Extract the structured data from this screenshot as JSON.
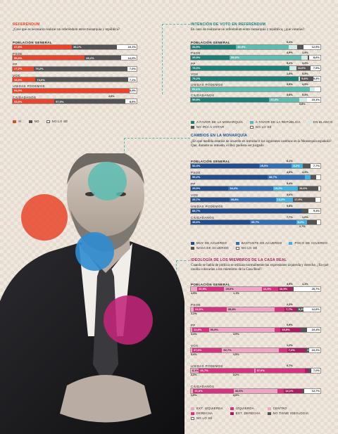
{
  "colors": {
    "red": "#e8452c",
    "dark": "#545454",
    "light": "#ffffff",
    "teal_dark": "#1b7f7a",
    "teal_mid": "#5bbcb2",
    "teal_light": "#cfe9e5",
    "blue_dark": "#1e4f91",
    "blue_mid": "#2f6fb8",
    "blue_light": "#3eb1e6",
    "magenta_dark": "#a81e62",
    "magenta_mid": "#d63383",
    "magenta_light": "#f1a5c6"
  },
  "chart_data": [
    {
      "id": "referendum",
      "type": "bar",
      "title": "REFERÉNDUM",
      "question": "¿Cree que es necesario realizar un referéndum entre monarquía y república?",
      "groups": [
        "POBLACIÓN GENERAL",
        "PSOE",
        "PP",
        "VOX",
        "UNIDAS PODEMOS",
        "CIUDADANOS"
      ],
      "series": [
        {
          "name": "SÍ",
          "values": [
            47.8,
            55.8,
            17.2,
            18.5,
            94.0,
            33.6
          ]
        },
        {
          "name": "NO",
          "values": [
            36.1,
            28.2,
            75.2,
            74.6,
            0.0,
            57.5
          ]
        },
        {
          "name": "NO LO SÉ",
          "values": [
            16.1,
            12.0,
            7.6,
            7.1,
            5.9,
            8.9
          ]
        }
      ],
      "labels": [
        [
          "47,8%",
          "36,1%",
          "16,1%"
        ],
        [
          "55,8%",
          "28,2%",
          "12,0%"
        ],
        [
          "17,2%",
          "75,2%",
          "7,6%"
        ],
        [
          "18,5%",
          "74,6%",
          "7,1%"
        ],
        [
          "94,0%",
          "",
          "5,9%"
        ],
        [
          "33,6%",
          "57,5%",
          "8,9%"
        ]
      ],
      "extra_labels": [
        "",
        "",
        "",
        "",
        "",
        "2,0%"
      ],
      "legend": [
        "SÍ",
        "NO",
        "NO LO SÉ"
      ]
    },
    {
      "id": "intencion",
      "type": "bar",
      "title": "INTENCIÓN DE VOTO EN REFERÉNDUM",
      "question": "En caso de realizarse un referéndum entre monarquía y república, ¿qué votarías?",
      "groups": [
        "POBLACIÓN GENERAL",
        "PSOE",
        "PP",
        "VOX",
        "UNIDAS PODEMOS",
        "CIUDADANOS"
      ],
      "series": [
        {
          "name": "A FAVOR DE LA MONARQUÍA",
          "values": [
            34.9,
            29.9,
            76.0,
            79.2,
            0.0,
            59.8
          ]
        },
        {
          "name": "A FAVOR DE LA REPÚBLICA",
          "values": [
            40.9,
            55.0,
            0.0,
            0.0,
            91.1,
            23.3
          ]
        },
        {
          "name": "EN BLANCO",
          "values": [
            6.4,
            4.9,
            5.2,
            1.4,
            3.5,
            5.8
          ]
        },
        {
          "name": "NO IRÍA A VOTAR",
          "values": [
            4.9,
            1.3,
            11.0,
            9.6,
            0.0,
            0.0
          ]
        },
        {
          "name": "NO LO SÉ",
          "values": [
            12.9,
            8.6,
            7.5,
            5.3,
            4.5,
            10.1
          ]
        }
      ],
      "labels": [
        [
          "34,9%",
          "40,9%",
          "",
          "",
          "12,9%"
        ],
        [
          "29,9%",
          "55,0%",
          "",
          "",
          "8,6%"
        ],
        [
          "76,0%",
          "",
          "",
          "11,0%",
          "7,5%"
        ],
        [
          "79,2%",
          "",
          "",
          "9,6%",
          "5,3%"
        ],
        [
          "",
          "91,1%",
          "",
          "",
          ""
        ],
        [
          "59,8%",
          "23,3%",
          "",
          "",
          "10,1%"
        ]
      ],
      "top_labels": [
        [
          "6,4%"
        ],
        [
          "4,9%",
          "1,3%"
        ],
        [
          "5,2%",
          "3,3%"
        ],
        [
          "1,4%",
          "5,3%"
        ],
        [
          "3,5%",
          "4,5%"
        ],
        [
          "5,8%",
          "5,3%"
        ]
      ],
      "bottom_labels": [
        "",
        "",
        "",
        "",
        "",
        "0,8%"
      ],
      "legend": [
        "A FAVOR DE LA MONARQUÍA",
        "A FAVOR DE LA REPÚBLICA",
        "EN BLANCO",
        "NO IRÍA A VOTAR",
        "NO LO SÉ"
      ]
    },
    {
      "id": "cambios",
      "type": "bar",
      "title": "CAMBIOS EN LA MONARQUÍA",
      "question": "¿En qué medida estarías de acuerdo en introducir los siguientes cambios en la Monarquía española? Que, durante su reinado, el Rey pudiera ser juzgado",
      "groups": [
        "POBLACIÓN GENERAL",
        "PSOE",
        "PP",
        "VOX",
        "UNIDAS PODEMOS",
        "CIUDADANOS"
      ],
      "series": [
        {
          "name": "MUY DE ACUERDO",
          "values": [
            52.4,
            59.2,
            29.0,
            29.7,
            88.7,
            45.6
          ]
        },
        {
          "name": "BASTANTE DE ACUERDO",
          "values": [
            25.5,
            28.7,
            34.4,
            35.8,
            0.0,
            35.7
          ]
        },
        {
          "name": "POCO DE ACUERDO",
          "values": [
            8.2,
            4.6,
            19.2,
            13.3,
            0.0,
            8.2
          ]
        },
        {
          "name": "NADA DE ACUERDO",
          "values": [
            6.1,
            4.3,
            15.6,
            17.5,
            5.8,
            7.7
          ]
        },
        {
          "name": "NO LO SÉ",
          "values": [
            7.7,
            3.2,
            1.8,
            3.7,
            9.4,
            2.8
          ]
        }
      ],
      "labels": [
        [
          "52,4%",
          "25,5%",
          "8,2%",
          "",
          "7,7%"
        ],
        [
          "59,2%",
          "28,7%",
          "",
          "",
          ""
        ],
        [
          "29,0%",
          "34,4%",
          "19,2%",
          "15,6%",
          ""
        ],
        [
          "29,7%",
          "35,8%",
          "13,3%",
          "17,5%",
          ""
        ],
        [
          "88,7%",
          "",
          "",
          "",
          "9,4%"
        ],
        [
          "45,6%",
          "35,7%",
          "8,2%",
          "",
          ""
        ]
      ],
      "top_labels": [
        [
          "6,1%"
        ],
        [
          "4,6%",
          "4,3%"
        ],
        [
          "5,4%"
        ],
        [
          "3,6%"
        ],
        [
          "5,8%"
        ],
        [
          "7,7%",
          "1,0%"
        ]
      ],
      "bottom_labels": [
        "",
        "",
        "",
        "",
        "",
        "2,7%"
      ],
      "legend": [
        "MUY DE ACUERDO",
        "BASTANTE DE ACUERDO",
        "POCO DE ACUERDO",
        "NADA DE ACUERDO",
        "NO LO SÉ"
      ]
    },
    {
      "id": "ideologia",
      "type": "bar",
      "title": "IDEOLOGÍA DE LOS MIEMBROS DE LA CASA REAL",
      "question": "Cuando se habla de política se utilizan normalmente las expresiones izquierda y derecha. ¿En qué casilla colocarías a los miembros de la Casa Real?",
      "groups": [
        "POBLACIÓN GENERAL",
        "PSOE",
        "PP",
        "VOX",
        "UNIDAS PODEMOS",
        "CIUDADANOS"
      ],
      "series": [
        {
          "name": "EXT. IZQUIERDA",
          "values": [
            4.9,
            2.2,
            0.9,
            1.2,
            6.1,
            1.9
          ]
        },
        {
          "name": "IZQUIERDA",
          "values": [
            20.9,
            24.6,
            12.8,
            27.6,
            41.7,
            31.8
          ]
        },
        {
          "name": "CENTRO",
          "values": [
            29.0,
            35.8,
            50.9,
            52.7,
            0.7,
            34.6
          ]
        },
        {
          "name": "DERECHA",
          "values": [
            12.5,
            7.7,
            4.4,
            7.4,
            37.9,
            4.9
          ]
        },
        {
          "name": "EXT. DERECHA",
          "values": [
            10.9,
            9.3,
            15.5,
            17.2,
            2.2,
            14.1
          ]
        },
        {
          "name": "NO TIENE IDEOLOGÍA",
          "values": [
            1.1,
            4.9,
            4.9,
            3.4,
            2.3,
            1.9
          ]
        },
        {
          "name": "NO LO SÉ",
          "values": [
            20.7,
            12.6,
            10.4,
            10.2,
            7.0,
            12.7
          ]
        }
      ],
      "labels": [
        [
          "",
          "20,9%",
          "29,0%",
          "12,5%",
          "10,9%",
          "",
          "20,7%"
        ],
        [
          "",
          "24,6%",
          "35,8%",
          "",
          "7,7%",
          "9,3%",
          "12,6%"
        ],
        [
          "",
          "12,8%",
          "50,9%",
          "",
          "15,5%",
          "",
          "10,4%"
        ],
        [
          "",
          "27,6%",
          "52,7%",
          "",
          "7,4%",
          "17,2%",
          "10,2%"
        ],
        [
          "6,1%",
          "41,7%",
          "",
          "37,9%",
          "",
          "",
          "7,0%"
        ],
        [
          "",
          "31,8%",
          "34,6%",
          "",
          "14,1%",
          "",
          "12,7%"
        ]
      ],
      "top_labels": [
        [
          "4,9%",
          "1,1%"
        ],
        [
          "2,2%"
        ],
        [
          "0,9%"
        ],
        [
          "1,2%"
        ],
        [
          "0,7%"
        ],
        []
      ],
      "bottom_labels": [
        [
          "4,9%",
          "1,1%"
        ],
        [
          "2,2%"
        ],
        [
          "4,4%",
          "4,9%"
        ],
        [
          "3,4%",
          "1,5%"
        ],
        [
          "2,3%",
          "2,2%"
        ],
        [
          "1,9%",
          "4,9%"
        ]
      ],
      "legend": [
        "EXT. IZQUIERDA",
        "IZQUIERDA",
        "CENTRO",
        "DERECHA",
        "EXT. DERECHA",
        "NO TIENE IDEOLOGÍA",
        "NO LO SÉ"
      ]
    }
  ]
}
